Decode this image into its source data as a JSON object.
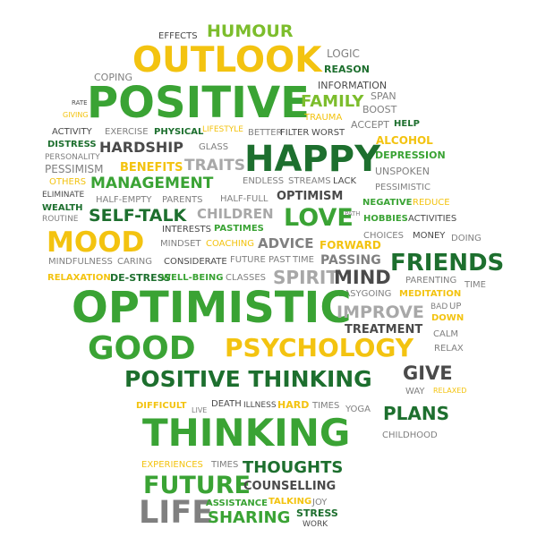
{
  "palette": {
    "dark_green": "#1d6f2e",
    "green": "#3aa334",
    "light_green": "#7cbd2c",
    "yellow": "#f3c310",
    "dark_gray": "#4a4a4a",
    "gray": "#808080",
    "light_gray": "#a8a8a8",
    "red_accent": "#c0392b"
  },
  "words": [
    "EFFECTS",
    "HUMOUR",
    "OUTLOOK",
    "LOGIC",
    "REASON",
    "COPING",
    "INFORMATION",
    "POSITIVE",
    "FAMILY",
    "SPAN",
    "RATE",
    "BOOST",
    "GIVING",
    "TRAUMA",
    "ACCEPT",
    "HELP",
    "ACTIVITY",
    "EXERCISE",
    "PHYSICAL",
    "LIFESTYLE",
    "BETTER",
    "FILTER",
    "WORST",
    "DISTRESS",
    "HARDSHIP",
    "GLASS",
    "HAPPY",
    "ALCOHOL",
    "PERSONALITY",
    "DEPRESSION",
    "PESSIMISM",
    "BENEFITS",
    "TRAITS",
    "UNSPOKEN",
    "OTHERS",
    "MANAGEMENT",
    "ENDLESS",
    "STREAMS",
    "LACK",
    "PESSIMISTIC",
    "ELIMINATE",
    "HALF-EMPTY",
    "PARENTS",
    "HALF-FULL",
    "OPTIMISM",
    "NEGATIVE",
    "REDUCE",
    "WEALTH",
    "SELF-TALK",
    "CHILDREN",
    "LOVE",
    "HOBBIES",
    "ACTIVITIES",
    "ROUTINE",
    "INTERESTS",
    "PASTIMES",
    "CHOICES",
    "MONEY",
    "DOING",
    "MOOD",
    "MINDSET",
    "COACHING",
    "ADVICE",
    "FORWARD",
    "MINDFULNESS",
    "CARING",
    "CONSIDERATE",
    "FUTURE",
    "PAST",
    "TIME",
    "PASSING",
    "FRIENDS",
    "RELAXATION",
    "DE-STRESS",
    "WELL-BEING",
    "CLASSES",
    "SPIRIT",
    "MIND",
    "PARENTING",
    "TIME",
    "EASYGOING",
    "MEDITATION",
    "BAD",
    "UP",
    "OPTIMISTIC",
    "IMPROVE",
    "DOWN",
    "TREATMENT",
    "CALM",
    "GOOD",
    "PSYCHOLOGY",
    "RELAX",
    "POSITIVE THINKING",
    "GIVE",
    "WAY",
    "RELAXED",
    "DIFFICULT",
    "LIVE",
    "DEATH",
    "ILLNESS",
    "HARD",
    "TIMES",
    "YOGA",
    "PLANS",
    "THINKING",
    "CHILDHOOD",
    "EXPERIENCES",
    "TIMES",
    "THOUGHTS",
    "FUTURE",
    "COUNSELLING",
    "LIFE",
    "ASSISTANCE",
    "TALKING",
    "JOY",
    "SHARING",
    "STRESS",
    "WORK",
    "PATH"
  ]
}
